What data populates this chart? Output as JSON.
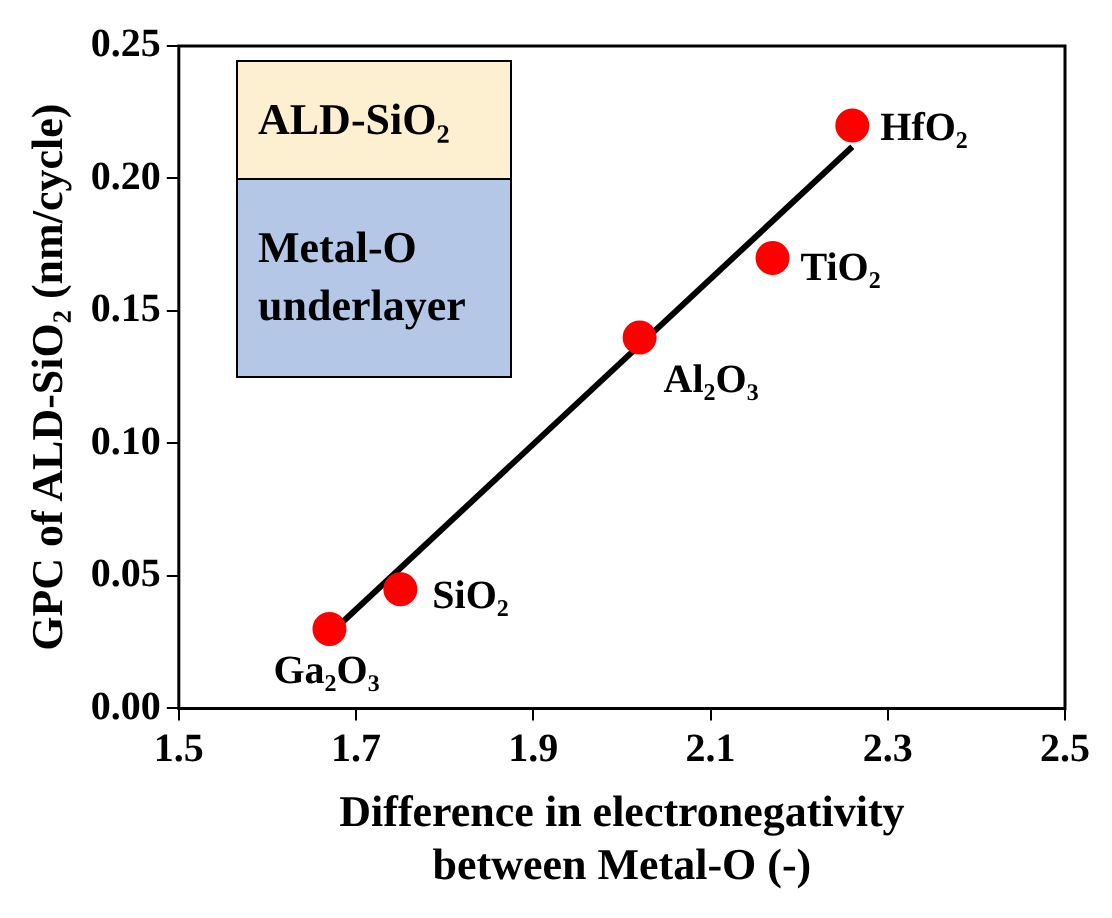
{
  "chart_data": {
    "type": "scatter",
    "xlabel": "Difference in electronegativity\nbetween Metal-O (-)",
    "ylabel": "GPC of ALD-SiO₂ (nm/cycle)",
    "xlim": [
      1.5,
      2.5
    ],
    "xticks": [
      1.5,
      1.7,
      1.9,
      2.1,
      2.3,
      2.5
    ],
    "ylim": [
      0,
      0.25
    ],
    "yticks": [
      {
        "value": 0,
        "label": "0.00"
      },
      {
        "value": 0.05,
        "label": "0.05"
      },
      {
        "value": 0.1,
        "label": "0.10"
      },
      {
        "value": 0.15,
        "label": "0.15"
      },
      {
        "value": 0.2,
        "label": "0.20"
      },
      {
        "value": 0.25,
        "label": "0.25"
      }
    ],
    "grid": false,
    "legend": false,
    "marker": "circle",
    "series": [
      {
        "type": "scatter",
        "color": "#ff0000",
        "x": [
          1.67,
          1.75,
          2.02,
          2.17,
          2.26
        ],
        "values": [
          0.03,
          0.045,
          0.14,
          0.17,
          0.22
        ]
      },
      {
        "type": "line",
        "color": "#000000",
        "x": [
          1.67,
          2.26
        ],
        "values": [
          0.028,
          0.212
        ],
        "marker": "none"
      }
    ],
    "annotations": [
      "ALD-SiO₂",
      "Metal-O underlayer",
      {
        "text": "Ga₂O₃",
        "x": 1.67,
        "y": 0.03
      },
      {
        "text": "SiO₂",
        "x": 1.75,
        "y": 0.045
      },
      {
        "text": "Al₂O₃",
        "x": 2.02,
        "y": 0.14
      },
      {
        "text": "TiO₂",
        "x": 2.17,
        "y": 0.17
      },
      {
        "text": "HfO₂",
        "x": 2.26,
        "y": 0.22
      }
    ]
  }
}
